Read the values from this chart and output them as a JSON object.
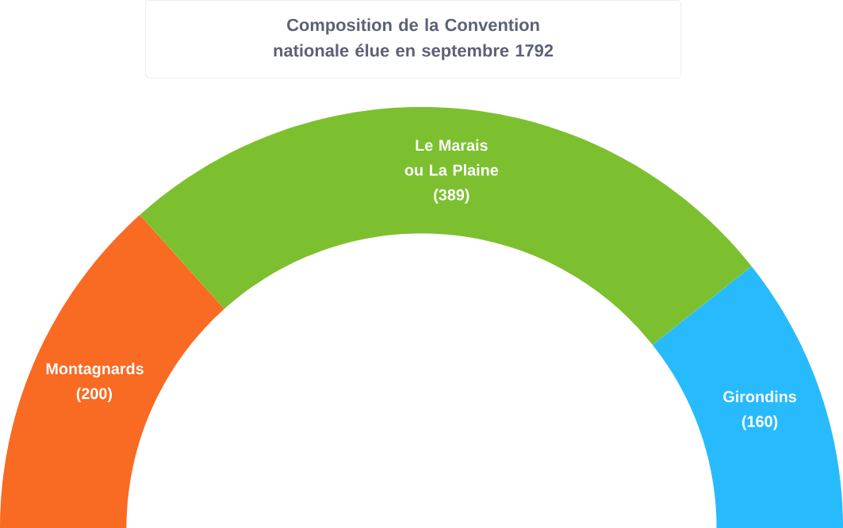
{
  "chart_data": {
    "type": "donut",
    "title": "Composition de la Convention nationale élue en septembre 1792",
    "categories": [
      "Montagnards",
      "Le Marais ou La Plaine",
      "Girondins"
    ],
    "values": [
      200,
      389,
      160
    ],
    "value_labels": [
      "(200)",
      "(389)",
      "(160)"
    ],
    "colors": [
      "#f96a22",
      "#7cc030",
      "#27bbfd"
    ]
  }
}
